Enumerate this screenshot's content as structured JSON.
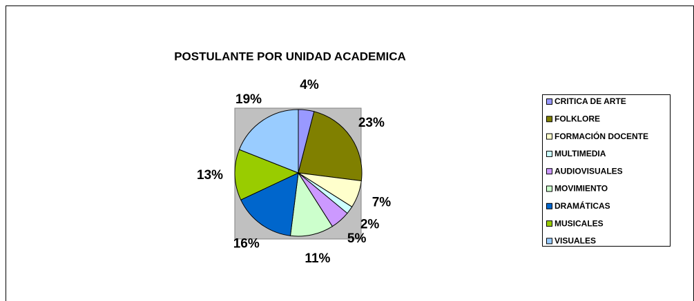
{
  "chart_data": {
    "type": "pie",
    "title": "POSTULANTE POR UNIDAD ACADEMICA",
    "categories": [
      "CRITICA DE ARTE",
      "FOLKLORE",
      "FORMACIÓN DOCENTE",
      "MULTIMEDIA",
      "AUDIOVISUALES",
      "MOVIMIENTO",
      "DRAMÁTICAS",
      "MUSICALES",
      "VISUALES"
    ],
    "values": [
      4,
      23,
      7,
      2,
      5,
      11,
      16,
      13,
      19
    ],
    "value_labels": [
      "4%",
      "23%",
      "7%",
      "2%",
      "5%",
      "11%",
      "16%",
      "13%",
      "19%"
    ],
    "colors": [
      "#9999ff",
      "#808000",
      "#ffffcc",
      "#ccffff",
      "#cc99ff",
      "#ccffcc",
      "#0066cc",
      "#99cc00",
      "#99ccff"
    ],
    "legend": "right"
  }
}
